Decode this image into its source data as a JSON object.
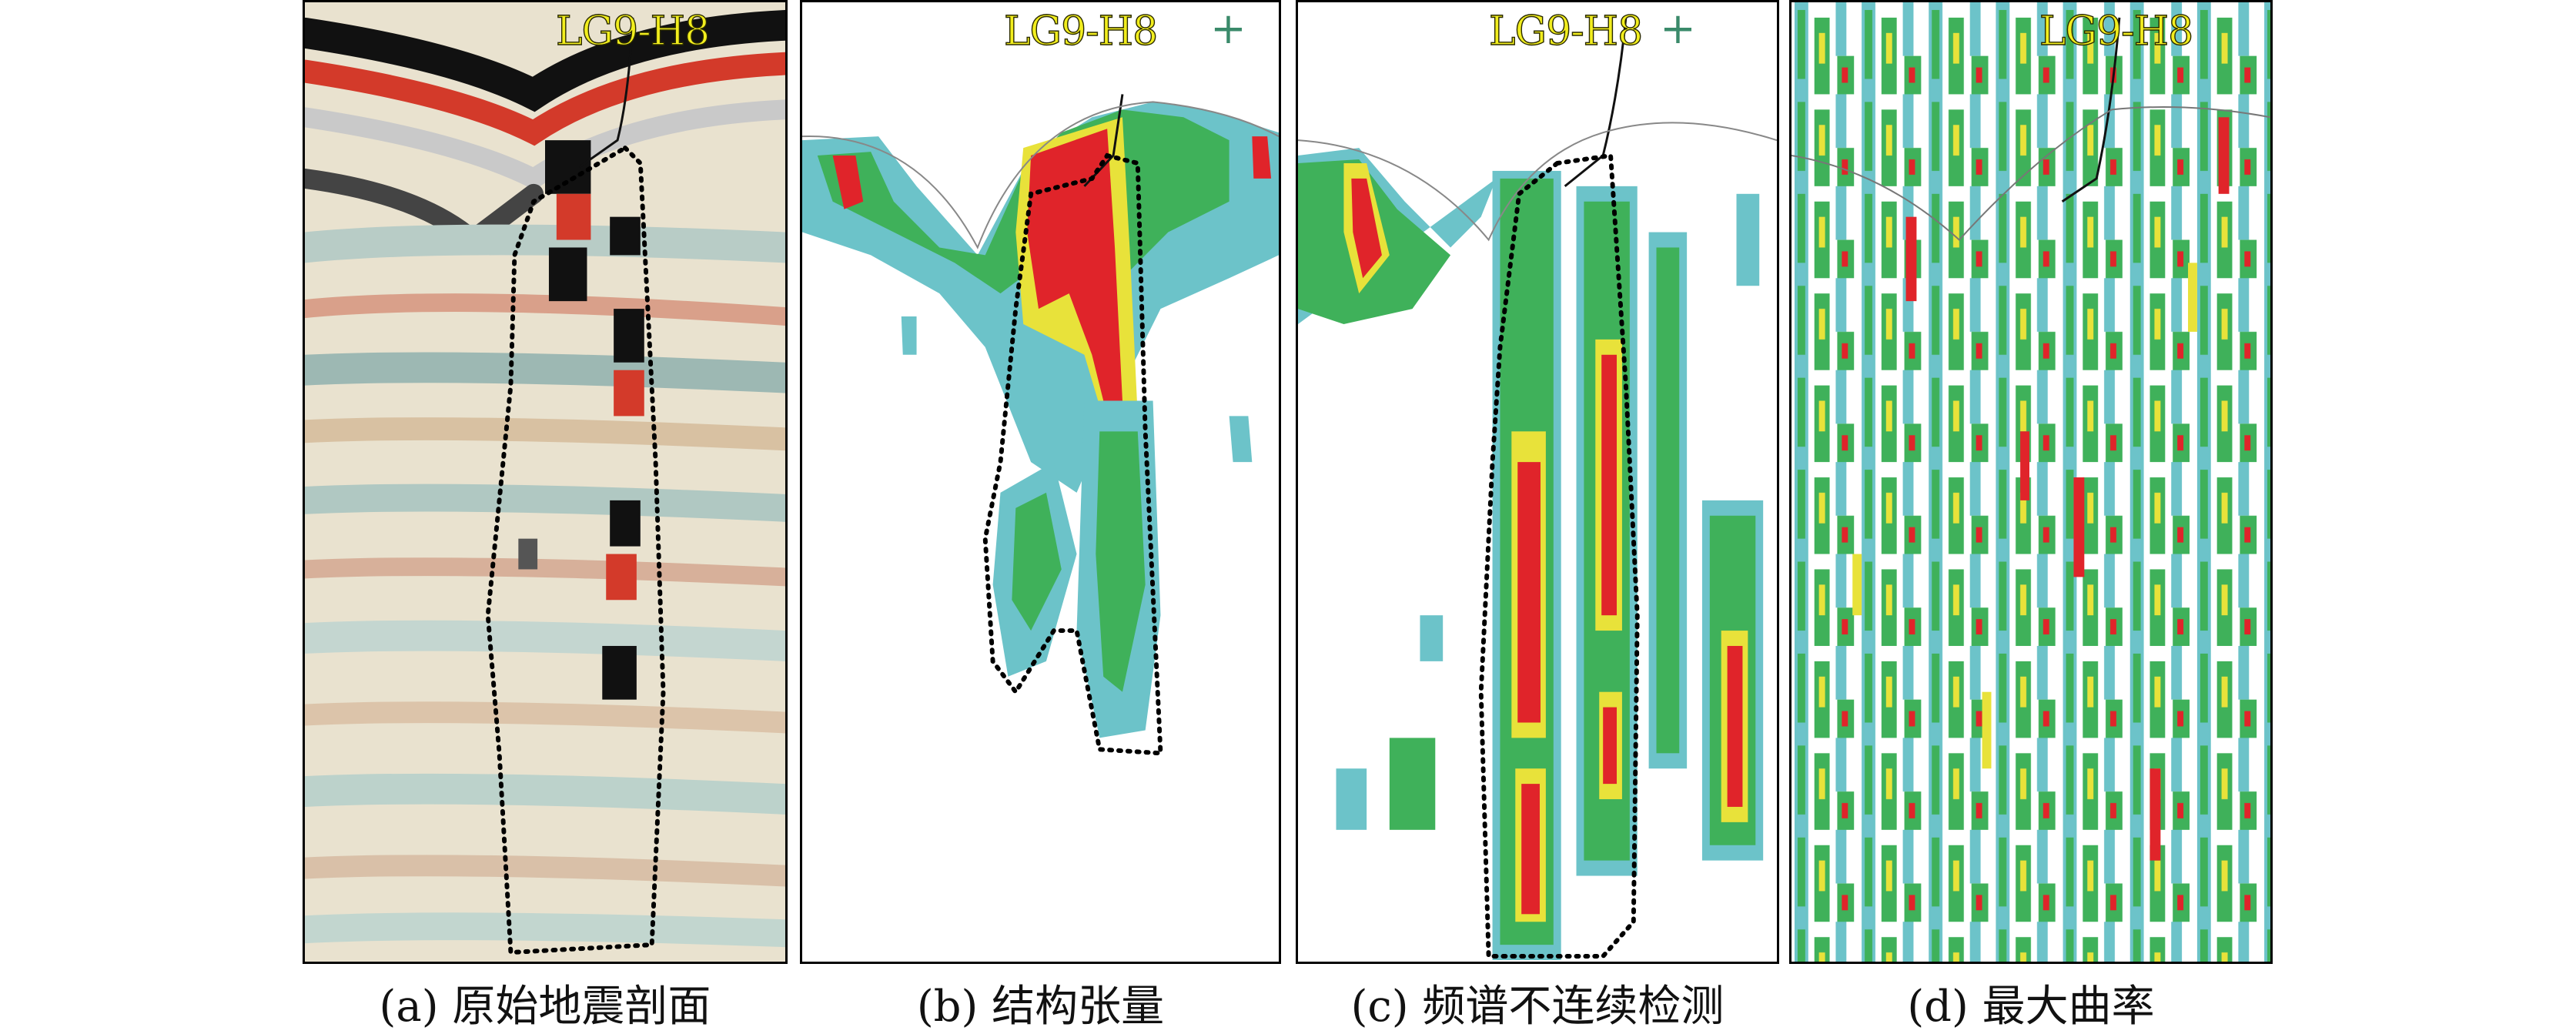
{
  "well_label": "LG9-H8",
  "plus_sign": "+",
  "panels": [
    {
      "caption": "(a) 原始地震剖面"
    },
    {
      "caption": "(b) 结构张量"
    },
    {
      "caption": "(c) 频谱不连续检测"
    },
    {
      "caption": "(d) 最大曲率"
    }
  ],
  "colors": {
    "red": "#e0242a",
    "green": "#3fb15a",
    "cyan": "#6cc3c9",
    "yellow": "#e8e23a",
    "outline": "#000000"
  }
}
